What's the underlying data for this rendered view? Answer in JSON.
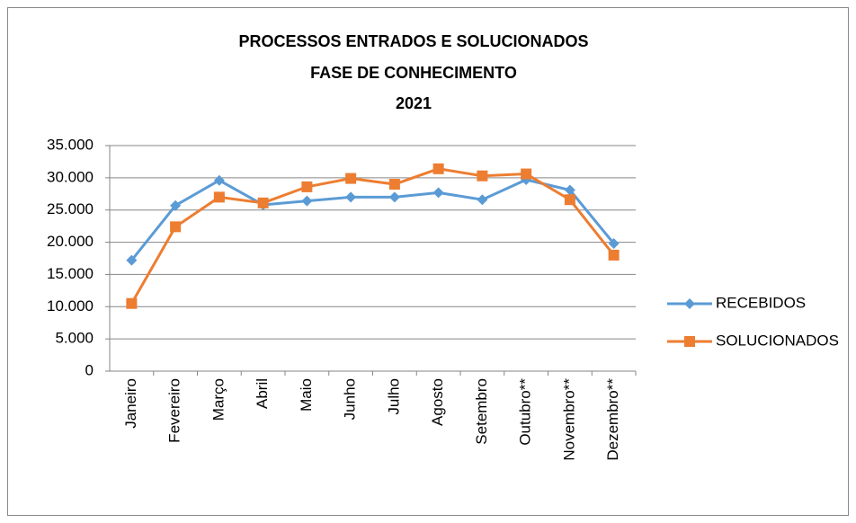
{
  "chart_data": {
    "type": "line",
    "title": [
      "PROCESSOS ENTRADOS E SOLUCIONADOS",
      "FASE DE CONHECIMENTO",
      "2021"
    ],
    "categories": [
      "Janeiro",
      "Fevereiro",
      "Março",
      "Abril",
      "Maio",
      "Junho",
      "Julho",
      "Agosto",
      "Setembro",
      "Outubro**",
      "Novembro**",
      "Dezembro**"
    ],
    "series": [
      {
        "name": "RECEBIDOS",
        "color": "#5b9bd5",
        "marker": "diamond",
        "values": [
          17200,
          25700,
          29600,
          25800,
          26400,
          27000,
          27000,
          27700,
          26600,
          29700,
          28100,
          19800
        ]
      },
      {
        "name": "SOLUCIONADOS",
        "color": "#ed7d31",
        "marker": "square",
        "values": [
          10500,
          22400,
          27000,
          26100,
          28600,
          29900,
          29000,
          31400,
          30300,
          30600,
          26600,
          18000
        ]
      }
    ],
    "ylim": [
      0,
      35000
    ],
    "yticks": [
      0,
      {
        "value": 5000,
        "label": "5.000"
      },
      {
        "value": 10000,
        "label": "10.000"
      },
      {
        "value": 15000,
        "label": "15.000"
      },
      {
        "value": 20000,
        "label": "20.000"
      },
      {
        "value": 25000,
        "label": "25.000"
      },
      {
        "value": 30000,
        "label": "30.000"
      },
      {
        "value": 35000,
        "label": "35.000"
      }
    ],
    "grid": true,
    "legend": "right"
  }
}
